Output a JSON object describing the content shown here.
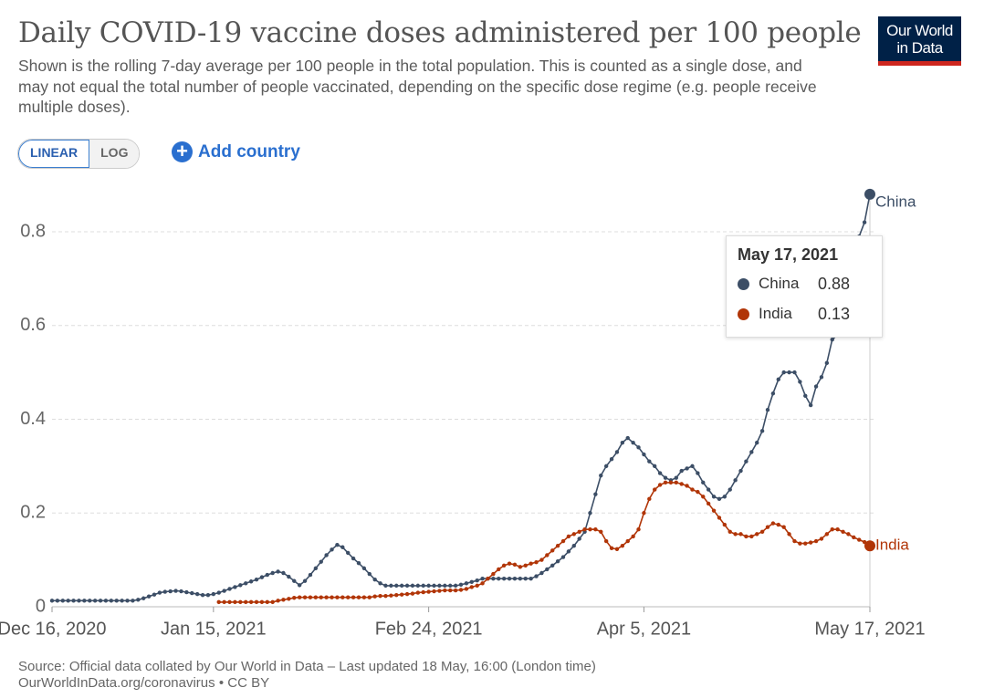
{
  "header": {
    "title": "Daily COVID-19 vaccine doses administered per 100 people",
    "subtitle": "Shown is the rolling 7-day average per 100 people in the total population. This is counted as a single dose, and may not equal the total number of people vaccinated, depending on the specific dose regime (e.g. people receive multiple doses).",
    "logo": [
      "Our World",
      "in Data"
    ]
  },
  "controls": {
    "scale_buttons": [
      "LINEAR",
      "LOG"
    ],
    "add": "Add country"
  },
  "footer": {
    "source": "Source: Official data collated by Our World in Data – Last updated 18 May, 16:00 (London time)",
    "url": "OurWorldInData.org/coronavirus • CC BY"
  },
  "chart_data": {
    "type": "line",
    "grid": true,
    "xlim": [
      "2020-12-16",
      "2021-05-17"
    ],
    "xticks": [
      {
        "value": "2020-12-16",
        "label": "Dec 16, 2020"
      },
      {
        "value": "2021-01-15",
        "label": "Jan 15, 2021"
      },
      {
        "value": "2021-02-24",
        "label": "Feb 24, 2021"
      },
      {
        "value": "2021-04-05",
        "label": "Apr 5, 2021"
      },
      {
        "value": "2021-05-17",
        "label": "May 17, 2021"
      }
    ],
    "ylim": [
      0,
      0.885
    ],
    "yticks": [
      0,
      0.2,
      0.4,
      0.6,
      0.8
    ],
    "tooltip": {
      "title": "May 17, 2021"
    },
    "x": [
      "2020-12-16",
      "2020-12-17",
      "2020-12-18",
      "2020-12-19",
      "2020-12-20",
      "2020-12-21",
      "2020-12-22",
      "2020-12-23",
      "2020-12-24",
      "2020-12-25",
      "2020-12-26",
      "2020-12-27",
      "2020-12-28",
      "2020-12-29",
      "2020-12-30",
      "2020-12-31",
      "2021-01-01",
      "2021-01-02",
      "2021-01-03",
      "2021-01-04",
      "2021-01-05",
      "2021-01-06",
      "2021-01-07",
      "2021-01-08",
      "2021-01-09",
      "2021-01-10",
      "2021-01-11",
      "2021-01-12",
      "2021-01-13",
      "2021-01-14",
      "2021-01-15",
      "2021-01-16",
      "2021-01-17",
      "2021-01-18",
      "2021-01-19",
      "2021-01-20",
      "2021-01-21",
      "2021-01-22",
      "2021-01-23",
      "2021-01-24",
      "2021-01-25",
      "2021-01-26",
      "2021-01-27",
      "2021-01-28",
      "2021-01-29",
      "2021-01-30",
      "2021-01-31",
      "2021-02-01",
      "2021-02-02",
      "2021-02-03",
      "2021-02-04",
      "2021-02-05",
      "2021-02-06",
      "2021-02-07",
      "2021-02-08",
      "2021-02-09",
      "2021-02-10",
      "2021-02-11",
      "2021-02-12",
      "2021-02-13",
      "2021-02-14",
      "2021-02-15",
      "2021-02-16",
      "2021-02-17",
      "2021-02-18",
      "2021-02-19",
      "2021-02-20",
      "2021-02-21",
      "2021-02-22",
      "2021-02-23",
      "2021-02-24",
      "2021-02-25",
      "2021-02-26",
      "2021-02-27",
      "2021-02-28",
      "2021-03-01",
      "2021-03-02",
      "2021-03-03",
      "2021-03-04",
      "2021-03-05",
      "2021-03-06",
      "2021-03-07",
      "2021-03-08",
      "2021-03-09",
      "2021-03-10",
      "2021-03-11",
      "2021-03-12",
      "2021-03-13",
      "2021-03-14",
      "2021-03-15",
      "2021-03-16",
      "2021-03-17",
      "2021-03-18",
      "2021-03-19",
      "2021-03-20",
      "2021-03-21",
      "2021-03-22",
      "2021-03-23",
      "2021-03-24",
      "2021-03-25",
      "2021-03-26",
      "2021-03-27",
      "2021-03-28",
      "2021-03-29",
      "2021-03-30",
      "2021-03-31",
      "2021-04-01",
      "2021-04-02",
      "2021-04-03",
      "2021-04-04",
      "2021-04-05",
      "2021-04-06",
      "2021-04-07",
      "2021-04-08",
      "2021-04-09",
      "2021-04-10",
      "2021-04-11",
      "2021-04-12",
      "2021-04-13",
      "2021-04-14",
      "2021-04-15",
      "2021-04-16",
      "2021-04-17",
      "2021-04-18",
      "2021-04-19",
      "2021-04-20",
      "2021-04-21",
      "2021-04-22",
      "2021-04-23",
      "2021-04-24",
      "2021-04-25",
      "2021-04-26",
      "2021-04-27",
      "2021-04-28",
      "2021-04-29",
      "2021-04-30",
      "2021-05-01",
      "2021-05-02",
      "2021-05-03",
      "2021-05-04",
      "2021-05-05",
      "2021-05-06",
      "2021-05-07",
      "2021-05-08",
      "2021-05-09",
      "2021-05-10",
      "2021-05-11",
      "2021-05-12",
      "2021-05-13",
      "2021-05-14",
      "2021-05-15",
      "2021-05-16",
      "2021-05-17"
    ],
    "series": [
      {
        "name": "China",
        "color": "#3c4e66",
        "values": [
          0.013,
          0.013,
          0.013,
          0.013,
          0.013,
          0.013,
          0.013,
          0.013,
          0.013,
          0.013,
          0.013,
          0.013,
          0.013,
          0.013,
          0.013,
          0.013,
          0.015,
          0.018,
          0.022,
          0.026,
          0.03,
          0.032,
          0.033,
          0.034,
          0.033,
          0.031,
          0.029,
          0.027,
          0.025,
          0.025,
          0.027,
          0.03,
          0.034,
          0.038,
          0.042,
          0.046,
          0.05,
          0.054,
          0.058,
          0.063,
          0.068,
          0.072,
          0.075,
          0.072,
          0.064,
          0.055,
          0.046,
          0.055,
          0.068,
          0.082,
          0.096,
          0.11,
          0.122,
          0.132,
          0.127,
          0.115,
          0.103,
          0.093,
          0.082,
          0.07,
          0.058,
          0.05,
          0.045,
          0.045,
          0.045,
          0.045,
          0.045,
          0.045,
          0.045,
          0.045,
          0.045,
          0.045,
          0.045,
          0.045,
          0.045,
          0.045,
          0.047,
          0.05,
          0.053,
          0.056,
          0.06,
          0.06,
          0.06,
          0.06,
          0.06,
          0.06,
          0.06,
          0.06,
          0.06,
          0.06,
          0.065,
          0.072,
          0.08,
          0.088,
          0.097,
          0.106,
          0.118,
          0.13,
          0.145,
          0.16,
          0.2,
          0.24,
          0.28,
          0.3,
          0.315,
          0.33,
          0.35,
          0.36,
          0.35,
          0.34,
          0.325,
          0.31,
          0.3,
          0.285,
          0.275,
          0.27,
          0.275,
          0.29,
          0.295,
          0.3,
          0.285,
          0.265,
          0.25,
          0.235,
          0.23,
          0.235,
          0.25,
          0.27,
          0.29,
          0.31,
          0.33,
          0.35,
          0.375,
          0.42,
          0.455,
          0.485,
          0.5,
          0.5,
          0.5,
          0.48,
          0.45,
          0.43,
          0.47,
          0.49,
          0.52,
          0.57,
          0.58,
          0.64,
          0.7,
          0.75,
          0.79,
          0.82,
          0.88
        ]
      },
      {
        "name": "India",
        "color": "#b13507",
        "values": [
          null,
          null,
          null,
          null,
          null,
          null,
          null,
          null,
          null,
          null,
          null,
          null,
          null,
          null,
          null,
          null,
          null,
          null,
          null,
          null,
          null,
          null,
          null,
          null,
          null,
          null,
          null,
          null,
          null,
          null,
          null,
          0.01,
          0.01,
          0.01,
          0.01,
          0.01,
          0.01,
          0.01,
          0.01,
          0.01,
          0.01,
          0.01,
          0.013,
          0.015,
          0.017,
          0.019,
          0.02,
          0.02,
          0.02,
          0.02,
          0.02,
          0.02,
          0.02,
          0.02,
          0.02,
          0.02,
          0.02,
          0.02,
          0.02,
          0.02,
          0.022,
          0.023,
          0.023,
          0.024,
          0.025,
          0.026,
          0.027,
          0.028,
          0.03,
          0.031,
          0.032,
          0.033,
          0.034,
          0.035,
          0.035,
          0.035,
          0.036,
          0.038,
          0.042,
          0.045,
          0.05,
          0.06,
          0.07,
          0.08,
          0.088,
          0.092,
          0.09,
          0.085,
          0.088,
          0.092,
          0.095,
          0.1,
          0.11,
          0.12,
          0.13,
          0.14,
          0.15,
          0.155,
          0.16,
          0.165,
          0.165,
          0.165,
          0.16,
          0.14,
          0.125,
          0.123,
          0.13,
          0.14,
          0.15,
          0.165,
          0.2,
          0.23,
          0.25,
          0.26,
          0.265,
          0.265,
          0.265,
          0.262,
          0.258,
          0.25,
          0.245,
          0.235,
          0.22,
          0.205,
          0.19,
          0.175,
          0.16,
          0.155,
          0.155,
          0.15,
          0.15,
          0.155,
          0.16,
          0.17,
          0.178,
          0.175,
          0.17,
          0.155,
          0.14,
          0.135,
          0.135,
          0.137,
          0.14,
          0.145,
          0.155,
          0.165,
          0.165,
          0.16,
          0.155,
          0.148,
          0.143,
          0.138,
          0.13
        ]
      }
    ]
  }
}
